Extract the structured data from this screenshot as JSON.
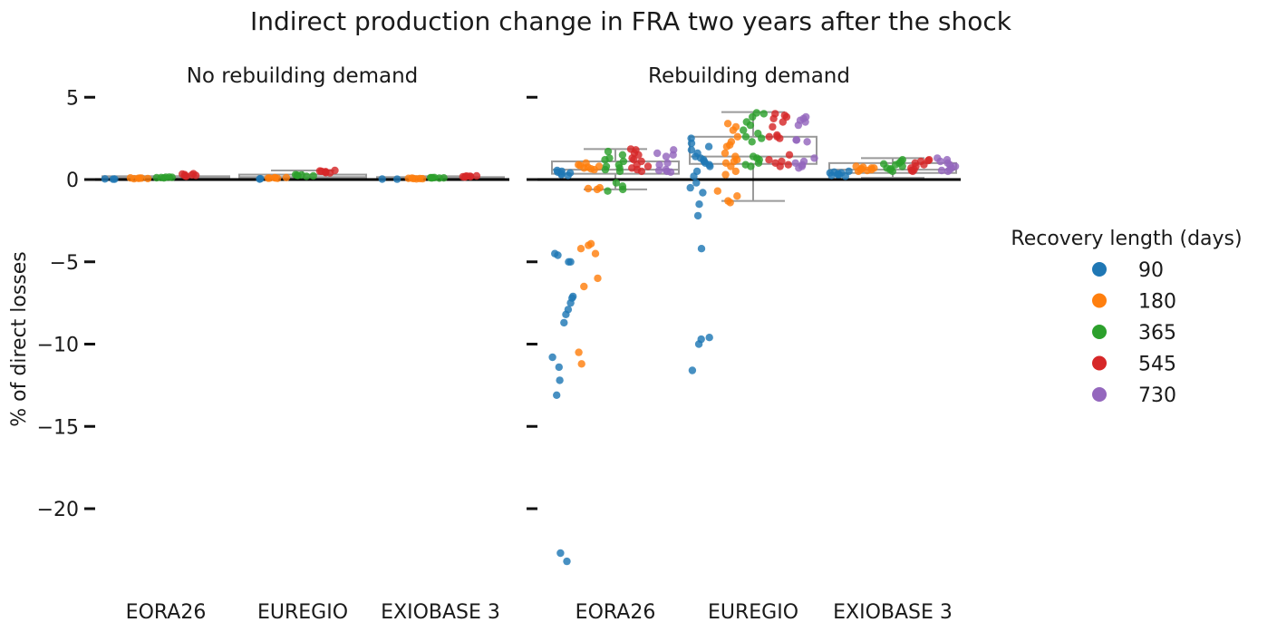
{
  "title": "Indirect production change in FRA two years after the shock",
  "ylabel": "% of direct losses",
  "legend": {
    "title": "Recovery length (days)",
    "items": [
      {
        "label": "90",
        "color": "#1f77b4"
      },
      {
        "label": "180",
        "color": "#ff7f0e"
      },
      {
        "label": "365",
        "color": "#2ca02c"
      },
      {
        "label": "545",
        "color": "#d62728"
      },
      {
        "label": "730",
        "color": "#9467bd"
      }
    ]
  },
  "chart_data": {
    "type": "scatter",
    "subtype": "strip-plot-with-boxplot",
    "ylim": [
      -24,
      6
    ],
    "yticks": [
      5,
      0,
      -5,
      -10,
      -15,
      -20
    ],
    "ytick_labels": [
      "5",
      "0",
      "−5",
      "−10",
      "−15",
      "−20"
    ],
    "categories": [
      "EORA26",
      "EUREGIO",
      "EXIOBASE 3"
    ],
    "reference_line_y": 0,
    "panels": [
      {
        "title": "No rebuilding demand",
        "boxes": [
          {
            "category": "EORA26",
            "whisker_low": 0.0,
            "q1": 0.0,
            "median": 0.1,
            "q3": 0.2,
            "whisker_high": 0.2
          },
          {
            "category": "EUREGIO",
            "whisker_low": 0.0,
            "q1": 0.05,
            "median": 0.15,
            "q3": 0.3,
            "whisker_high": 0.55
          },
          {
            "category": "EXIOBASE 3",
            "whisker_low": 0.0,
            "q1": 0.0,
            "median": 0.1,
            "q3": 0.15,
            "whisker_high": 0.2
          }
        ],
        "points": {
          "EORA26": {
            "90": [
              0.02,
              0.03,
              0.04
            ],
            "180": [
              0.05,
              0.07,
              0.08,
              0.1,
              0.06,
              0.09
            ],
            "365": [
              0.1,
              0.12,
              0.13,
              0.15,
              0.11,
              0.14
            ],
            "545": [
              0.2,
              0.25,
              0.3,
              0.35,
              0.28,
              0.22,
              0.33
            ],
            "730": []
          },
          "EUREGIO": {
            "90": [
              0.03,
              0.05
            ],
            "180": [
              0.08,
              0.1,
              0.12,
              0.09,
              0.11,
              0.07
            ],
            "365": [
              0.2,
              0.25,
              0.3,
              0.22,
              0.28,
              0.26
            ],
            "545": [
              0.4,
              0.45,
              0.5,
              0.55,
              0.48,
              0.42,
              0.52
            ],
            "730": []
          },
          "EXIOBASE 3": {
            "90": [
              0.02,
              0.03
            ],
            "180": [
              0.05,
              0.06,
              0.07,
              0.04,
              0.08,
              0.06
            ],
            "365": [
              0.1,
              0.11,
              0.12,
              0.09,
              0.1,
              0.11
            ],
            "545": [
              0.15,
              0.18,
              0.2,
              0.22,
              0.17,
              0.19,
              0.21
            ],
            "730": []
          }
        }
      },
      {
        "title": "Rebuilding demand",
        "boxes": [
          {
            "category": "EORA26",
            "whisker_low": -0.6,
            "q1": 0.35,
            "median": 0.6,
            "q3": 1.1,
            "whisker_high": 1.85
          },
          {
            "category": "EUREGIO",
            "whisker_low": -1.3,
            "q1": 0.95,
            "median": 1.4,
            "q3": 2.6,
            "whisker_high": 4.1
          },
          {
            "category": "EXIOBASE 3",
            "whisker_low": 0.1,
            "q1": 0.4,
            "median": 0.6,
            "q3": 1.0,
            "whisker_high": 1.3
          }
        ],
        "points": {
          "EORA26": {
            "90": [
              0.3,
              0.4,
              0.5,
              0.35,
              0.45,
              0.55,
              0.25,
              -4.5,
              -4.6,
              -5.0,
              -5.0,
              -7.1,
              -7.2,
              -7.5,
              -7.9,
              -8.2,
              -8.7,
              -10.8,
              -11.4,
              -12.2,
              -13.1,
              -22.7,
              -23.2
            ],
            "180": [
              0.6,
              0.7,
              0.8,
              0.9,
              1.0,
              0.65,
              0.75,
              0.85,
              -0.5,
              -0.55,
              -0.6,
              -3.9,
              -4.0,
              -4.2,
              -4.5,
              -6.0,
              -6.5,
              -10.5,
              -11.2
            ],
            "365": [
              0.5,
              0.7,
              0.9,
              1.1,
              1.3,
              1.5,
              1.7,
              0.6,
              0.8,
              1.2,
              -0.2,
              -0.4,
              -0.6,
              -0.7
            ],
            "545": [
              0.5,
              0.7,
              0.9,
              1.1,
              1.3,
              1.5,
              1.8,
              0.6,
              0.8,
              1.2,
              1.6,
              1.85
            ],
            "730": [
              0.45,
              0.55,
              0.6,
              0.9,
              1.0,
              1.4,
              1.6,
              1.8,
              0.5,
              1.5
            ]
          },
          "EUREGIO": {
            "90": [
              0.5,
              0.8,
              1.0,
              1.2,
              1.4,
              1.6,
              1.8,
              2.0,
              2.2,
              2.5,
              0.2,
              -0.2,
              -0.5,
              -0.8,
              -1.5,
              -2.2,
              -4.2,
              -9.6,
              -9.7,
              -10.0,
              -11.6,
              0.9,
              1.1,
              1.3
            ],
            "180": [
              0.5,
              0.8,
              1.0,
              1.2,
              1.4,
              1.6,
              2.0,
              2.3,
              3.0,
              3.2,
              3.4,
              2.6,
              2.1,
              1.1,
              0.3,
              -0.7,
              -1.0,
              -1.3,
              -1.4
            ],
            "365": [
              0.8,
              1.0,
              1.2,
              1.4,
              2.3,
              2.5,
              2.8,
              3.0,
              3.3,
              3.8,
              4.0,
              4.05,
              0.9,
              1.3,
              2.6,
              3.5
            ],
            "545": [
              0.8,
              1.0,
              1.2,
              1.5,
              2.5,
              2.6,
              2.7,
              3.2,
              3.5,
              3.7,
              3.9,
              4.0,
              0.9,
              1.1,
              2.6,
              3.8
            ],
            "730": [
              0.7,
              0.9,
              1.1,
              1.3,
              2.3,
              2.4,
              3.3,
              3.5,
              3.6,
              3.7,
              3.8,
              0.8,
              1.0,
              2.4
            ]
          },
          "EXIOBASE 3": {
            "90": [
              0.2,
              0.3,
              0.4,
              0.5,
              0.25,
              0.35,
              0.45,
              0.3,
              0.4
            ],
            "180": [
              0.5,
              0.6,
              0.7,
              0.8,
              0.55,
              0.65,
              0.75,
              0.6,
              0.7
            ],
            "365": [
              0.5,
              0.7,
              0.9,
              1.1,
              1.2,
              0.6,
              0.8,
              1.0,
              0.65,
              0.95
            ],
            "545": [
              0.5,
              0.7,
              0.9,
              1.1,
              1.2,
              0.6,
              0.8,
              1.0,
              0.55,
              1.15
            ],
            "730": [
              0.5,
              0.7,
              0.9,
              1.1,
              1.2,
              1.3,
              0.6,
              0.8,
              1.0,
              0.55
            ]
          }
        }
      }
    ]
  }
}
